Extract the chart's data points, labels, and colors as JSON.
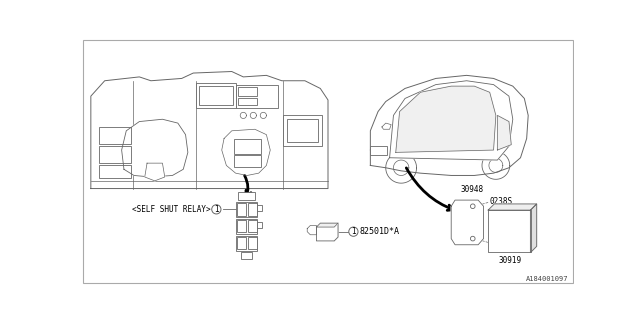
{
  "bg_color": "#ffffff",
  "line_color": "#666666",
  "dark_color": "#333333",
  "ref_number": "A184001097",
  "part_labels": {
    "self_shut_relay": "<SELF SHUT RELAY>",
    "part1": "82501D*A",
    "part2": "30948",
    "screw1": "0238S",
    "screw2": "0238S",
    "part3": "30919"
  }
}
